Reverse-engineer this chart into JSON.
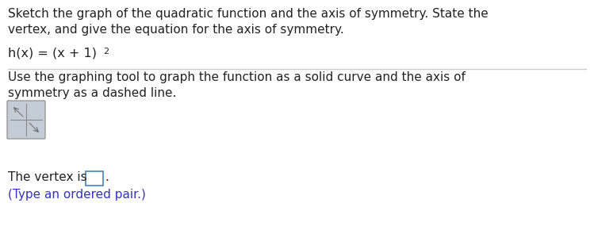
{
  "background_color": "#ffffff",
  "line1_text": "Sketch the graph of the quadratic function and the axis of symmetry. State the",
  "line2_text": "vertex, and give the equation for the axis of symmetry.",
  "function_base": "h(x) = (x + 1)",
  "function_super": "2",
  "separator_color": "#cccccc",
  "line3_text": "Use the graphing tool to graph the function as a solid curve and the axis of",
  "line4_text": "symmetry as a dashed line.",
  "vertex_label": "The vertex is",
  "type_text": "(Type an ordered pair.)",
  "text_color": "#222222",
  "blue_color": "#3333bb",
  "box_edge_color": "#4488bb",
  "icon_bg": "#c4cdd6",
  "icon_border": "#999999",
  "icon_inner_line": "#888888",
  "main_fontsize": 11.0,
  "func_fontsize": 11.5,
  "super_fontsize": 8.0,
  "dpi": 100,
  "fig_w": 7.49,
  "fig_h": 3.14
}
